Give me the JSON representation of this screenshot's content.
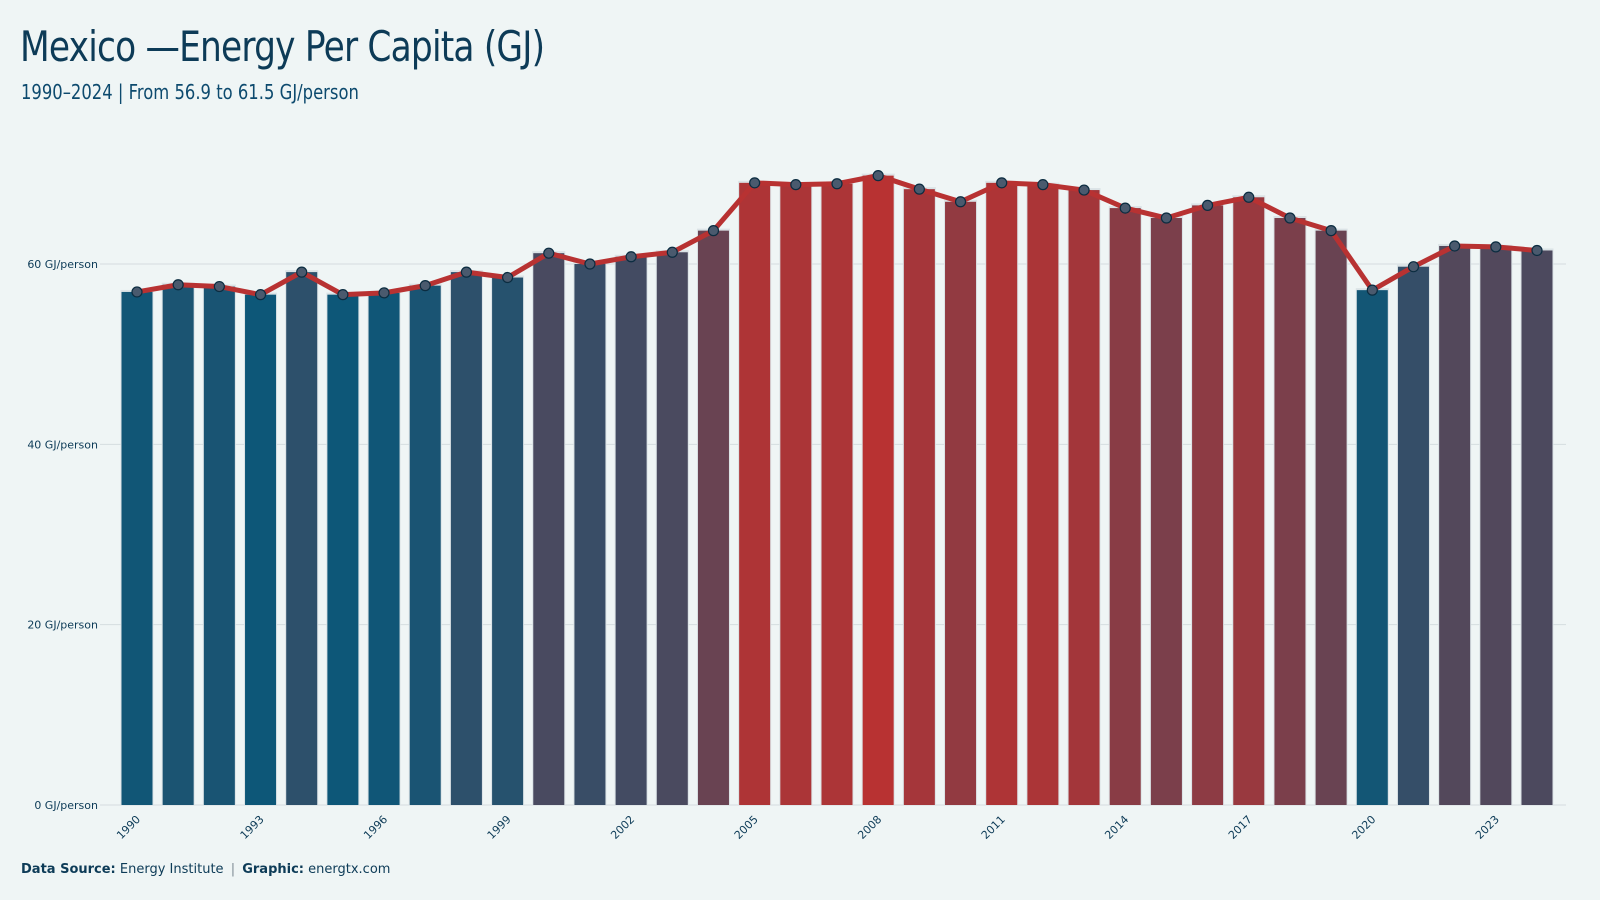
{
  "header": {
    "title": "Mexico —Energy Per Capita (GJ)",
    "subtitle": "1990–2024 | From 56.9 to 61.5 GJ/person"
  },
  "footer": {
    "source_label": "Data Source:",
    "source_value": "Energy Institute",
    "separator": "|",
    "graphic_label": "Graphic:",
    "graphic_value": "energtx.com"
  },
  "colors": {
    "low": "#0d5778",
    "high": "#b83232",
    "line": "#b83232",
    "marker_fill": "#4a5a6e",
    "grid": "#d4dcdf",
    "background": "#eff5f5"
  },
  "chart_data": {
    "type": "bar",
    "categories": [
      "1990",
      "1991",
      "1992",
      "1993",
      "1994",
      "1995",
      "1996",
      "1997",
      "1998",
      "1999",
      "2000",
      "2001",
      "2002",
      "2003",
      "2004",
      "2005",
      "2006",
      "2007",
      "2008",
      "2009",
      "2010",
      "2011",
      "2012",
      "2013",
      "2014",
      "2015",
      "2016",
      "2017",
      "2018",
      "2019",
      "2020",
      "2021",
      "2022",
      "2023",
      "2024"
    ],
    "x_tick_labels": [
      "1990",
      "1993",
      "1996",
      "1999",
      "2002",
      "2005",
      "2008",
      "2011",
      "2014",
      "2017",
      "2020",
      "2023"
    ],
    "values": [
      56.9,
      57.7,
      57.5,
      56.6,
      59.1,
      56.6,
      56.8,
      57.6,
      59.1,
      58.5,
      61.2,
      60.0,
      60.8,
      61.3,
      63.7,
      69.0,
      68.8,
      68.9,
      69.8,
      68.3,
      66.9,
      69.0,
      68.8,
      68.2,
      66.2,
      65.1,
      66.5,
      67.4,
      65.1,
      63.7,
      57.1,
      59.7,
      62.0,
      61.9,
      61.5
    ],
    "y_ticks": [
      0,
      20,
      40,
      60
    ],
    "y_tick_labels": [
      "0 GJ/person",
      "20 GJ/person",
      "40 GJ/person",
      "60 GJ/person"
    ],
    "ylim": [
      0,
      75
    ],
    "overlay": "line with circular markers",
    "grid": "horizontal",
    "title": "Mexico —Energy Per Capita (GJ)",
    "xlabel": "",
    "ylabel": ""
  }
}
